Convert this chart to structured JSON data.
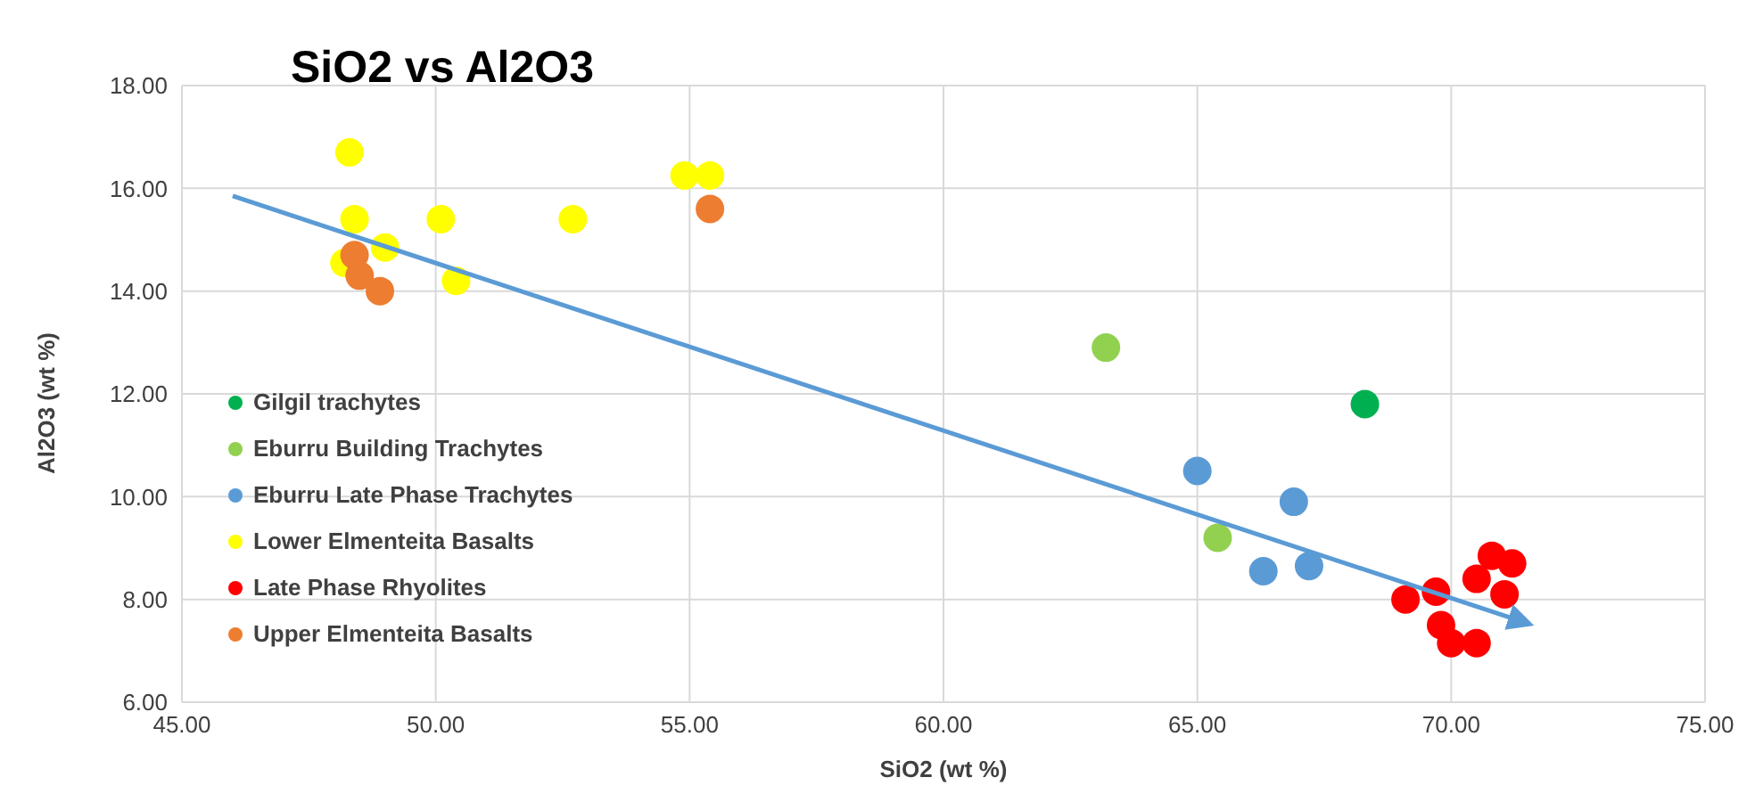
{
  "chart_data": {
    "type": "scatter",
    "title": "SiO2 vs Al2O3",
    "xlabel": "SiO2 (wt %)",
    "ylabel": "Al2O3 (wt %)",
    "xlim": [
      45,
      75
    ],
    "xticks": [
      {
        "value": 45,
        "label": "45.00"
      },
      {
        "value": 50,
        "label": "50.00"
      },
      {
        "value": 55,
        "label": "55.00"
      },
      {
        "value": 60,
        "label": "60.00"
      },
      {
        "value": 65,
        "label": "65.00"
      },
      {
        "value": 70,
        "label": "70.00"
      },
      {
        "value": 75,
        "label": "75.00"
      }
    ],
    "ylim": [
      6,
      18
    ],
    "yticks": [
      {
        "value": 6,
        "label": "6.00"
      },
      {
        "value": 8,
        "label": "8.00"
      },
      {
        "value": 10,
        "label": "10.00"
      },
      {
        "value": 12,
        "label": "12.00"
      },
      {
        "value": 14,
        "label": "14.00"
      },
      {
        "value": 16,
        "label": "16.00"
      },
      {
        "value": 18,
        "label": "18.00"
      }
    ],
    "grid": true,
    "legend": "left",
    "marker": "circle",
    "series": [
      {
        "name": "Gilgil trachytes",
        "color": "#00b050",
        "x": [
          68.3
        ],
        "values": [
          11.8
        ]
      },
      {
        "name": "Eburru Building Trachytes",
        "color": "#92d050",
        "x": [
          63.2,
          65.4
        ],
        "values": [
          12.9,
          9.2
        ]
      },
      {
        "name": "Eburru Late Phase Trachytes",
        "color": "#5b9bd5",
        "x": [
          65.0,
          66.9,
          66.3,
          67.2
        ],
        "values": [
          10.5,
          9.9,
          8.55,
          8.65
        ]
      },
      {
        "name": "Lower Elmenteita Basalts",
        "color": "#ffff00",
        "x": [
          48.3,
          48.4,
          49.0,
          48.2,
          50.1,
          50.4,
          52.7,
          54.9,
          55.4
        ],
        "values": [
          16.7,
          15.4,
          14.85,
          14.55,
          15.4,
          14.2,
          15.4,
          16.25,
          16.25
        ]
      },
      {
        "name": "Late Phase Rhyolites",
        "color": "#ff0000",
        "x": [
          69.1,
          69.7,
          69.8,
          70.0,
          70.5,
          70.5,
          70.8,
          71.2,
          71.05
        ],
        "values": [
          8.0,
          8.15,
          7.5,
          7.15,
          7.15,
          8.4,
          8.85,
          8.7,
          8.1
        ]
      },
      {
        "name": "Upper Elmenteita Basalts",
        "color": "#ed7d31",
        "x": [
          48.4,
          48.5,
          48.9,
          55.4
        ],
        "values": [
          14.7,
          14.3,
          14.0,
          15.6
        ]
      },
      {
        "type": "line",
        "marker": "none",
        "color": "#5b9bd5",
        "x": [
          46,
          71.3
        ],
        "values": [
          15.85,
          7.6
        ]
      }
    ]
  }
}
